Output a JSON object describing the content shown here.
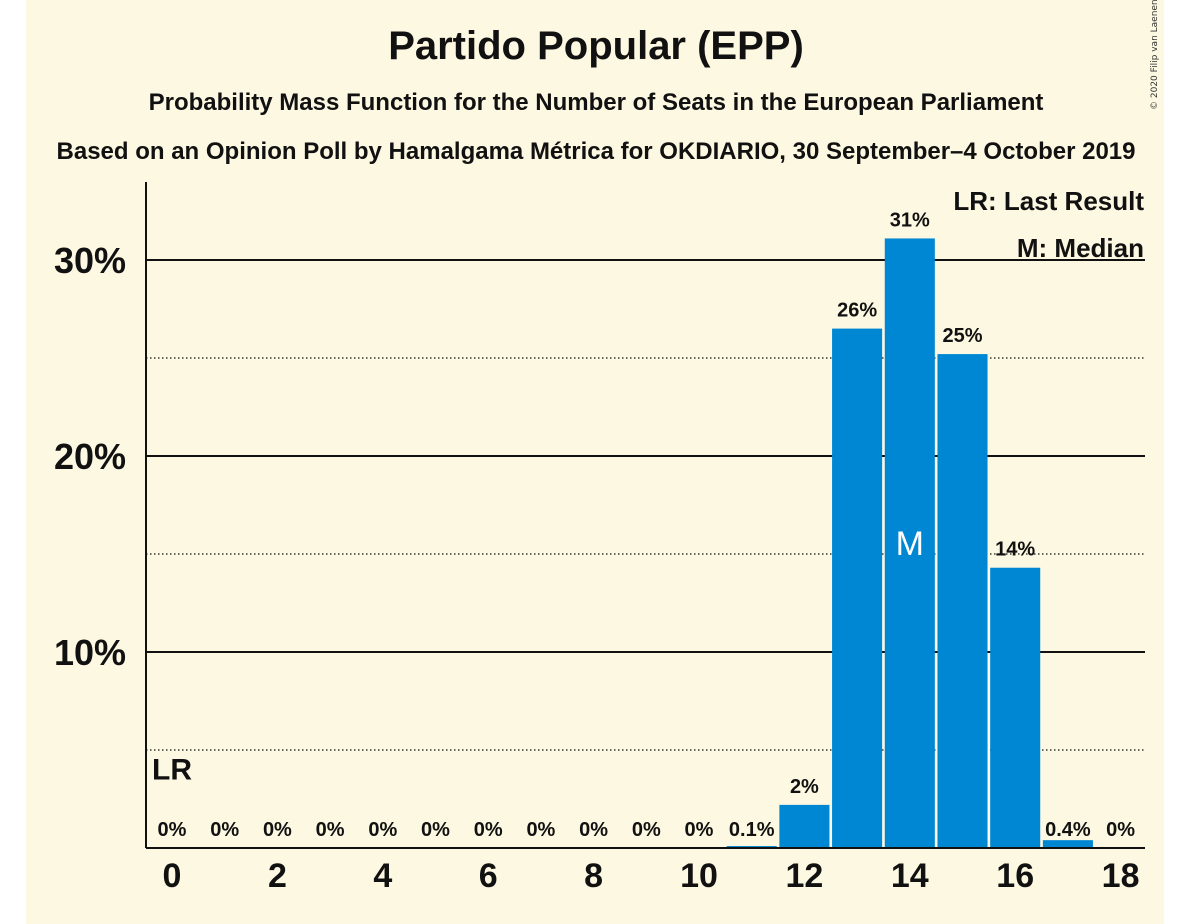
{
  "header": {
    "title": "Partido Popular (EPP)",
    "subtitle": "Probability Mass Function for the Number of Seats in the European Parliament",
    "source": "Based on an Opinion Poll by Hamalgama Métrica for OKDIARIO, 30 September–4 October 2019",
    "copyright": "© 2020 Filip van Laenen"
  },
  "legend": {
    "last_result": "LR: Last Result",
    "median": "M: Median"
  },
  "colors": {
    "bar": "#0087d4",
    "background": "#fdf8e1"
  },
  "chart_data": {
    "type": "bar",
    "title": "Partido Popular (EPP)",
    "xlabel": "",
    "ylabel": "",
    "categories": [
      0,
      1,
      2,
      3,
      4,
      5,
      6,
      7,
      8,
      9,
      10,
      11,
      12,
      13,
      14,
      15,
      16,
      17,
      18
    ],
    "values": [
      0,
      0,
      0,
      0,
      0,
      0,
      0,
      0,
      0,
      0,
      0,
      0.1,
      2.2,
      26.5,
      31.1,
      25.2,
      14.3,
      0.4,
      0
    ],
    "data_labels": [
      "0%",
      "0%",
      "0%",
      "0%",
      "0%",
      "0%",
      "0%",
      "0%",
      "0%",
      "0%",
      "0%",
      "0.1%",
      "2%",
      "26%",
      "31%",
      "25%",
      "14%",
      "0.4%",
      "0%"
    ],
    "x_ticks": [
      "0",
      "2",
      "4",
      "6",
      "8",
      "10",
      "12",
      "14",
      "16",
      "18"
    ],
    "y_ticks": [
      {
        "value": 10,
        "label": "10%"
      },
      {
        "value": 20,
        "label": "20%"
      },
      {
        "value": 30,
        "label": "30%"
      }
    ],
    "ylim": [
      0,
      34
    ],
    "grid": "solid at 10% steps, dotted at 5% midpoints",
    "legend_position": "top-right",
    "last_result": {
      "seat": 0,
      "label": "LR"
    },
    "median": {
      "seat": 14,
      "label": "M"
    }
  }
}
